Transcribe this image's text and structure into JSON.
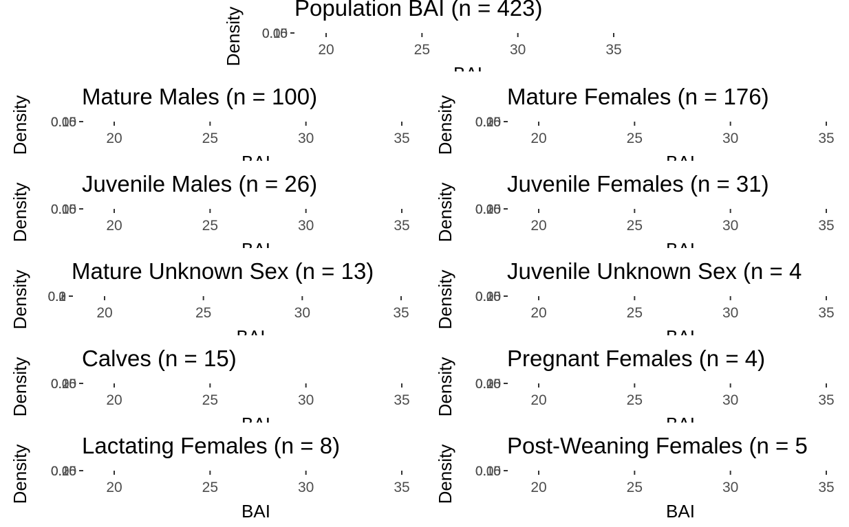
{
  "chart_data": [
    {
      "type": "area",
      "title": "Population BAI (n = 423)",
      "xlabel": "BAI",
      "ylabel": "Density",
      "x_ticks": [
        "20",
        "25",
        "30",
        "35"
      ],
      "y_ticks": [
        "0.00",
        "0.05",
        "0.10",
        "0.15"
      ],
      "xlim": [
        18,
        37
      ],
      "grid": false,
      "series": []
    },
    {
      "type": "area",
      "title": "Mature Males (n = 100)",
      "xlabel": "BAI",
      "ylabel": "Density",
      "x_ticks": [
        "20",
        "25",
        "30",
        "35"
      ],
      "y_ticks": [
        "0.00",
        "0.05",
        "0.10",
        "0.15"
      ],
      "xlim": [
        18,
        37
      ],
      "grid": false,
      "series": []
    },
    {
      "type": "area",
      "title": "Mature Females (n = 176)",
      "xlabel": "BAI",
      "ylabel": "Density",
      "x_ticks": [
        "20",
        "25",
        "30",
        "35"
      ],
      "y_ticks": [
        "0.00",
        "0.05",
        "0.10",
        "0.15",
        "0.20"
      ],
      "xlim": [
        18,
        37
      ],
      "grid": false,
      "series": []
    },
    {
      "type": "area",
      "title": "Juvenile Males (n = 26)",
      "xlabel": "BAI",
      "ylabel": "Density",
      "x_ticks": [
        "20",
        "25",
        "30",
        "35"
      ],
      "y_ticks": [
        "0.00",
        "0.05",
        "0.10",
        "0.15"
      ],
      "xlim": [
        18,
        37
      ],
      "grid": false,
      "series": []
    },
    {
      "type": "area",
      "title": "Juvenile Females (n = 31)",
      "xlabel": "BAI",
      "ylabel": "Density",
      "x_ticks": [
        "20",
        "25",
        "30",
        "35"
      ],
      "y_ticks": [
        "0.00",
        "0.05",
        "0.10",
        "0.15",
        "0.20"
      ],
      "xlim": [
        18,
        37
      ],
      "grid": false,
      "series": []
    },
    {
      "type": "area",
      "title": "Mature Unknown Sex (n = 13)",
      "xlabel": "BAI",
      "ylabel": "Density",
      "x_ticks": [
        "20",
        "25",
        "30",
        "35"
      ],
      "y_ticks": [
        "0.0",
        "0.1",
        "0.2",
        "0.3"
      ],
      "xlim": [
        18,
        37
      ],
      "grid": false,
      "series": []
    },
    {
      "type": "area",
      "title": "Juvenile Unknown Sex (n = 4",
      "xlabel": "BAI",
      "ylabel": "Density",
      "x_ticks": [
        "20",
        "25",
        "30",
        "35"
      ],
      "y_ticks": [
        "0.00",
        "0.05",
        "0.10",
        "0.15",
        "0.20"
      ],
      "xlim": [
        18,
        37
      ],
      "grid": false,
      "series": []
    },
    {
      "type": "area",
      "title": "Calves (n = 15)",
      "xlabel": "BAI",
      "ylabel": "Density",
      "x_ticks": [
        "20",
        "25",
        "30",
        "35"
      ],
      "y_ticks": [
        "0.00",
        "0.05",
        "0.10",
        "0.15",
        "0.20"
      ],
      "xlim": [
        18,
        37
      ],
      "grid": false,
      "series": []
    },
    {
      "type": "area",
      "title": "Pregnant Females (n = 4)",
      "xlabel": "BAI",
      "ylabel": "Density",
      "x_ticks": [
        "20",
        "25",
        "30",
        "35"
      ],
      "y_ticks": [
        "0.00",
        "0.05",
        "0.10",
        "0.15",
        "0.20"
      ],
      "xlim": [
        18,
        37
      ],
      "grid": false,
      "series": []
    },
    {
      "type": "area",
      "title": "Lactating Females (n = 8)",
      "xlabel": "BAI",
      "ylabel": "Density",
      "x_ticks": [
        "20",
        "25",
        "30",
        "35"
      ],
      "y_ticks": [
        "0.00",
        "0.05",
        "0.10",
        "0.15",
        "0.20"
      ],
      "xlim": [
        18,
        37
      ],
      "grid": false,
      "series": []
    },
    {
      "type": "area",
      "title": "Post-Weaning Females (n = 5",
      "xlabel": "BAI",
      "ylabel": "Density",
      "x_ticks": [
        "20",
        "25",
        "30",
        "35"
      ],
      "y_ticks": [
        "0.00",
        "0.05",
        "0.10",
        "0.15"
      ],
      "xlim": [
        18,
        37
      ],
      "grid": false,
      "series": []
    }
  ]
}
